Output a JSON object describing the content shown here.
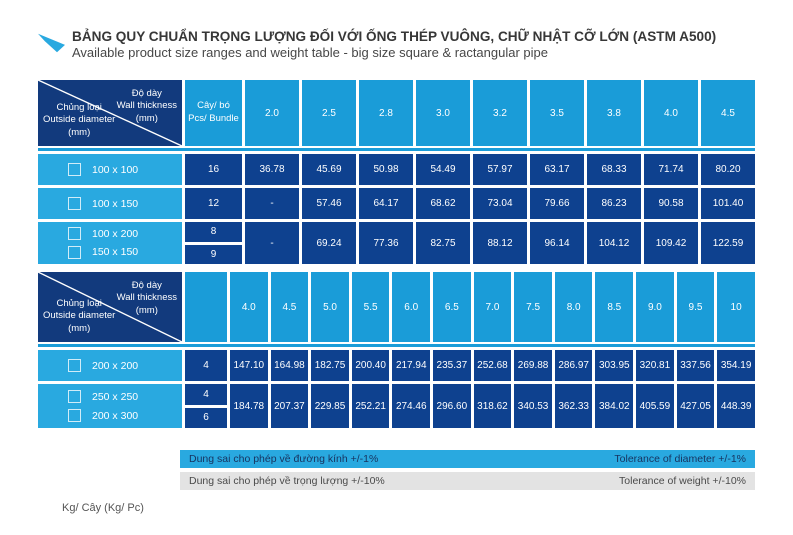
{
  "header": {
    "title": "BẢNG QUY CHUẨN TRỌNG LƯỢNG ĐỐI VỚI ỐNG THÉP VUÔNG, CHỮ NHẬT CỠ LỚN (ASTM A500)",
    "subtitle": "Available product size ranges and weight table - big size square & ractangular pipe",
    "logo_icon": "blue-swoosh"
  },
  "colors": {
    "corner_navy": "#123a7d",
    "data_blue": "#0e418f",
    "header_cyan": "#1a9cd8",
    "label_cyan": "#29a9e0",
    "tolerance_gray": "#e3e3e3",
    "accent": "#29a9e0"
  },
  "corner": {
    "top_lines": [
      "Độ dày",
      "Wall thickness",
      "(mm)"
    ],
    "bottom_lines": [
      "Chủng loại",
      "Outside diameter",
      "(mm)"
    ]
  },
  "tables": [
    {
      "pcs_header_lines": [
        "Cây/ bó",
        "Pcs/ Bundle"
      ],
      "thickness_headers": [
        "2.0",
        "2.5",
        "2.8",
        "3.0",
        "3.2",
        "3.5",
        "3.8",
        "4.0",
        "4.5"
      ],
      "rows": [
        {
          "labels": [
            "100 x 100"
          ],
          "pcs": [
            "16"
          ],
          "values": [
            "36.78",
            "45.69",
            "50.98",
            "54.49",
            "57.97",
            "63.17",
            "68.33",
            "71.74",
            "80.20"
          ]
        },
        {
          "labels": [
            "100 x 150"
          ],
          "pcs": [
            "12"
          ],
          "values": [
            "-",
            "57.46",
            "64.17",
            "68.62",
            "73.04",
            "79.66",
            "86.23",
            "90.58",
            "101.40"
          ]
        },
        {
          "labels": [
            "100 x 200",
            "150 x 150"
          ],
          "pcs": [
            "8",
            "9"
          ],
          "values": [
            "-",
            "69.24",
            "77.36",
            "82.75",
            "88.12",
            "96.14",
            "104.12",
            "109.42",
            "122.59"
          ]
        }
      ]
    },
    {
      "pcs_header_lines": [],
      "thickness_headers": [
        "4.0",
        "4.5",
        "5.0",
        "5.5",
        "6.0",
        "6.5",
        "7.0",
        "7.5",
        "8.0",
        "8.5",
        "9.0",
        "9.5",
        "10"
      ],
      "rows": [
        {
          "labels": [
            "200 x 200"
          ],
          "pcs": [
            "4"
          ],
          "values": [
            "147.10",
            "164.98",
            "182.75",
            "200.40",
            "217.94",
            "235.37",
            "252.68",
            "269.88",
            "286.97",
            "303.95",
            "320.81",
            "337.56",
            "354.19"
          ]
        },
        {
          "labels": [
            "250 x 250",
            "200 x 300"
          ],
          "pcs": [
            "4",
            "6"
          ],
          "values": [
            "184.78",
            "207.37",
            "229.85",
            "252.21",
            "274.46",
            "296.60",
            "318.62",
            "340.53",
            "362.33",
            "384.02",
            "405.59",
            "427.05",
            "448.39"
          ]
        }
      ]
    }
  ],
  "tolerances": [
    {
      "left": "Dung sai cho phép về đường kính +/-1%",
      "right": "Tolerance of diameter +/-1%"
    },
    {
      "left": "Dung sai cho phép về trọng lượng +/-10%",
      "right": "Tolerance of weight +/-10%"
    }
  ],
  "footer": {
    "unit_note": "Kg/ Cây (Kg/ Pc)"
  }
}
